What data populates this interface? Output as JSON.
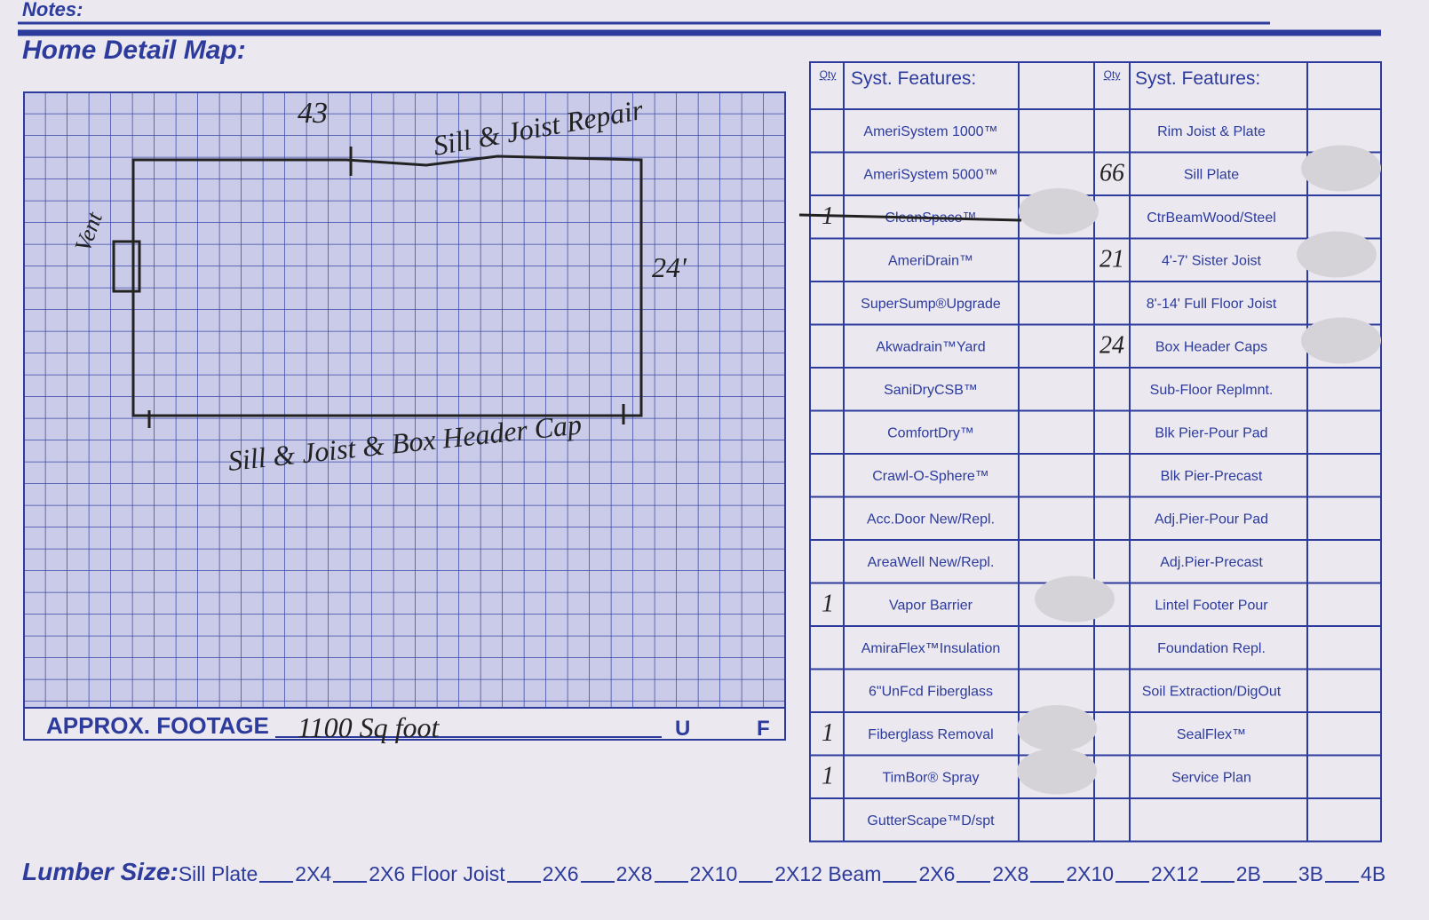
{
  "header": {
    "notes": "Notes:",
    "title": "Home Detail Map:"
  },
  "map": {
    "annotations": [
      "43",
      "Sill & Joist Repair",
      "Vent",
      "24'",
      "Sill & Joist & Box Header Cap"
    ],
    "footage_label": "APPROX. FOOTAGE",
    "footage_value": "1100 Sq foot",
    "unit_u": "U",
    "unit_f": "F"
  },
  "features": {
    "left": {
      "qty_header": "Qty",
      "header": "Syst. Features:",
      "rows": [
        {
          "feature": "AmeriSystem 1000™"
        },
        {
          "feature": "AmeriSystem 5000™"
        },
        {
          "feature": "CleanSpace™",
          "qty": "1"
        },
        {
          "feature": "AmeriDrain™"
        },
        {
          "feature": "SuperSump®Upgrade"
        },
        {
          "feature": "Akwadrain™Yard"
        },
        {
          "feature": "SaniDryCSB™"
        },
        {
          "feature": "ComfortDry™"
        },
        {
          "feature": "Crawl-O-Sphere™"
        },
        {
          "feature": "Acc.Door New/Repl."
        },
        {
          "feature": "AreaWell New/Repl."
        },
        {
          "feature": "Vapor Barrier",
          "qty": "1"
        },
        {
          "feature": "AmiraFlex™Insulation"
        },
        {
          "feature": "6\"UnFcd Fiberglass"
        },
        {
          "feature": "Fiberglass Removal",
          "qty": "1"
        },
        {
          "feature": "TimBor® Spray",
          "qty": "1"
        },
        {
          "feature": "GutterScape™D/spt"
        }
      ]
    },
    "right": {
      "qty_header": "Qty",
      "header": "Syst. Features:",
      "rows": [
        {
          "feature": "Rim Joist & Plate"
        },
        {
          "feature": "Sill Plate",
          "qty": "66"
        },
        {
          "feature": "CtrBeamWood/Steel"
        },
        {
          "feature": "4'-7' Sister Joist",
          "qty": "21"
        },
        {
          "feature": "8'-14' Full Floor Joist"
        },
        {
          "feature": "Box Header Caps",
          "qty": "24"
        },
        {
          "feature": "Sub-Floor Replmnt."
        },
        {
          "feature": "Blk Pier-Pour Pad"
        },
        {
          "feature": "Blk Pier-Precast"
        },
        {
          "feature": "Adj.Pier-Pour Pad"
        },
        {
          "feature": "Adj.Pier-Precast"
        },
        {
          "feature": "Lintel Footer Pour"
        },
        {
          "feature": "Foundation Repl."
        },
        {
          "feature": "Soil Extraction/DigOut"
        },
        {
          "feature": "SealFlex™"
        },
        {
          "feature": "Service Plan"
        }
      ]
    }
  },
  "lumber": {
    "label": "Lumber Size:",
    "items": [
      "Sill Plate",
      "2X4",
      "2X6 Floor Joist",
      "2X6",
      "2X8",
      "2X10",
      "2X12 Beam",
      "2X6",
      "2X8",
      "2X10",
      "2X12",
      "2B",
      "3B",
      "4B"
    ]
  }
}
